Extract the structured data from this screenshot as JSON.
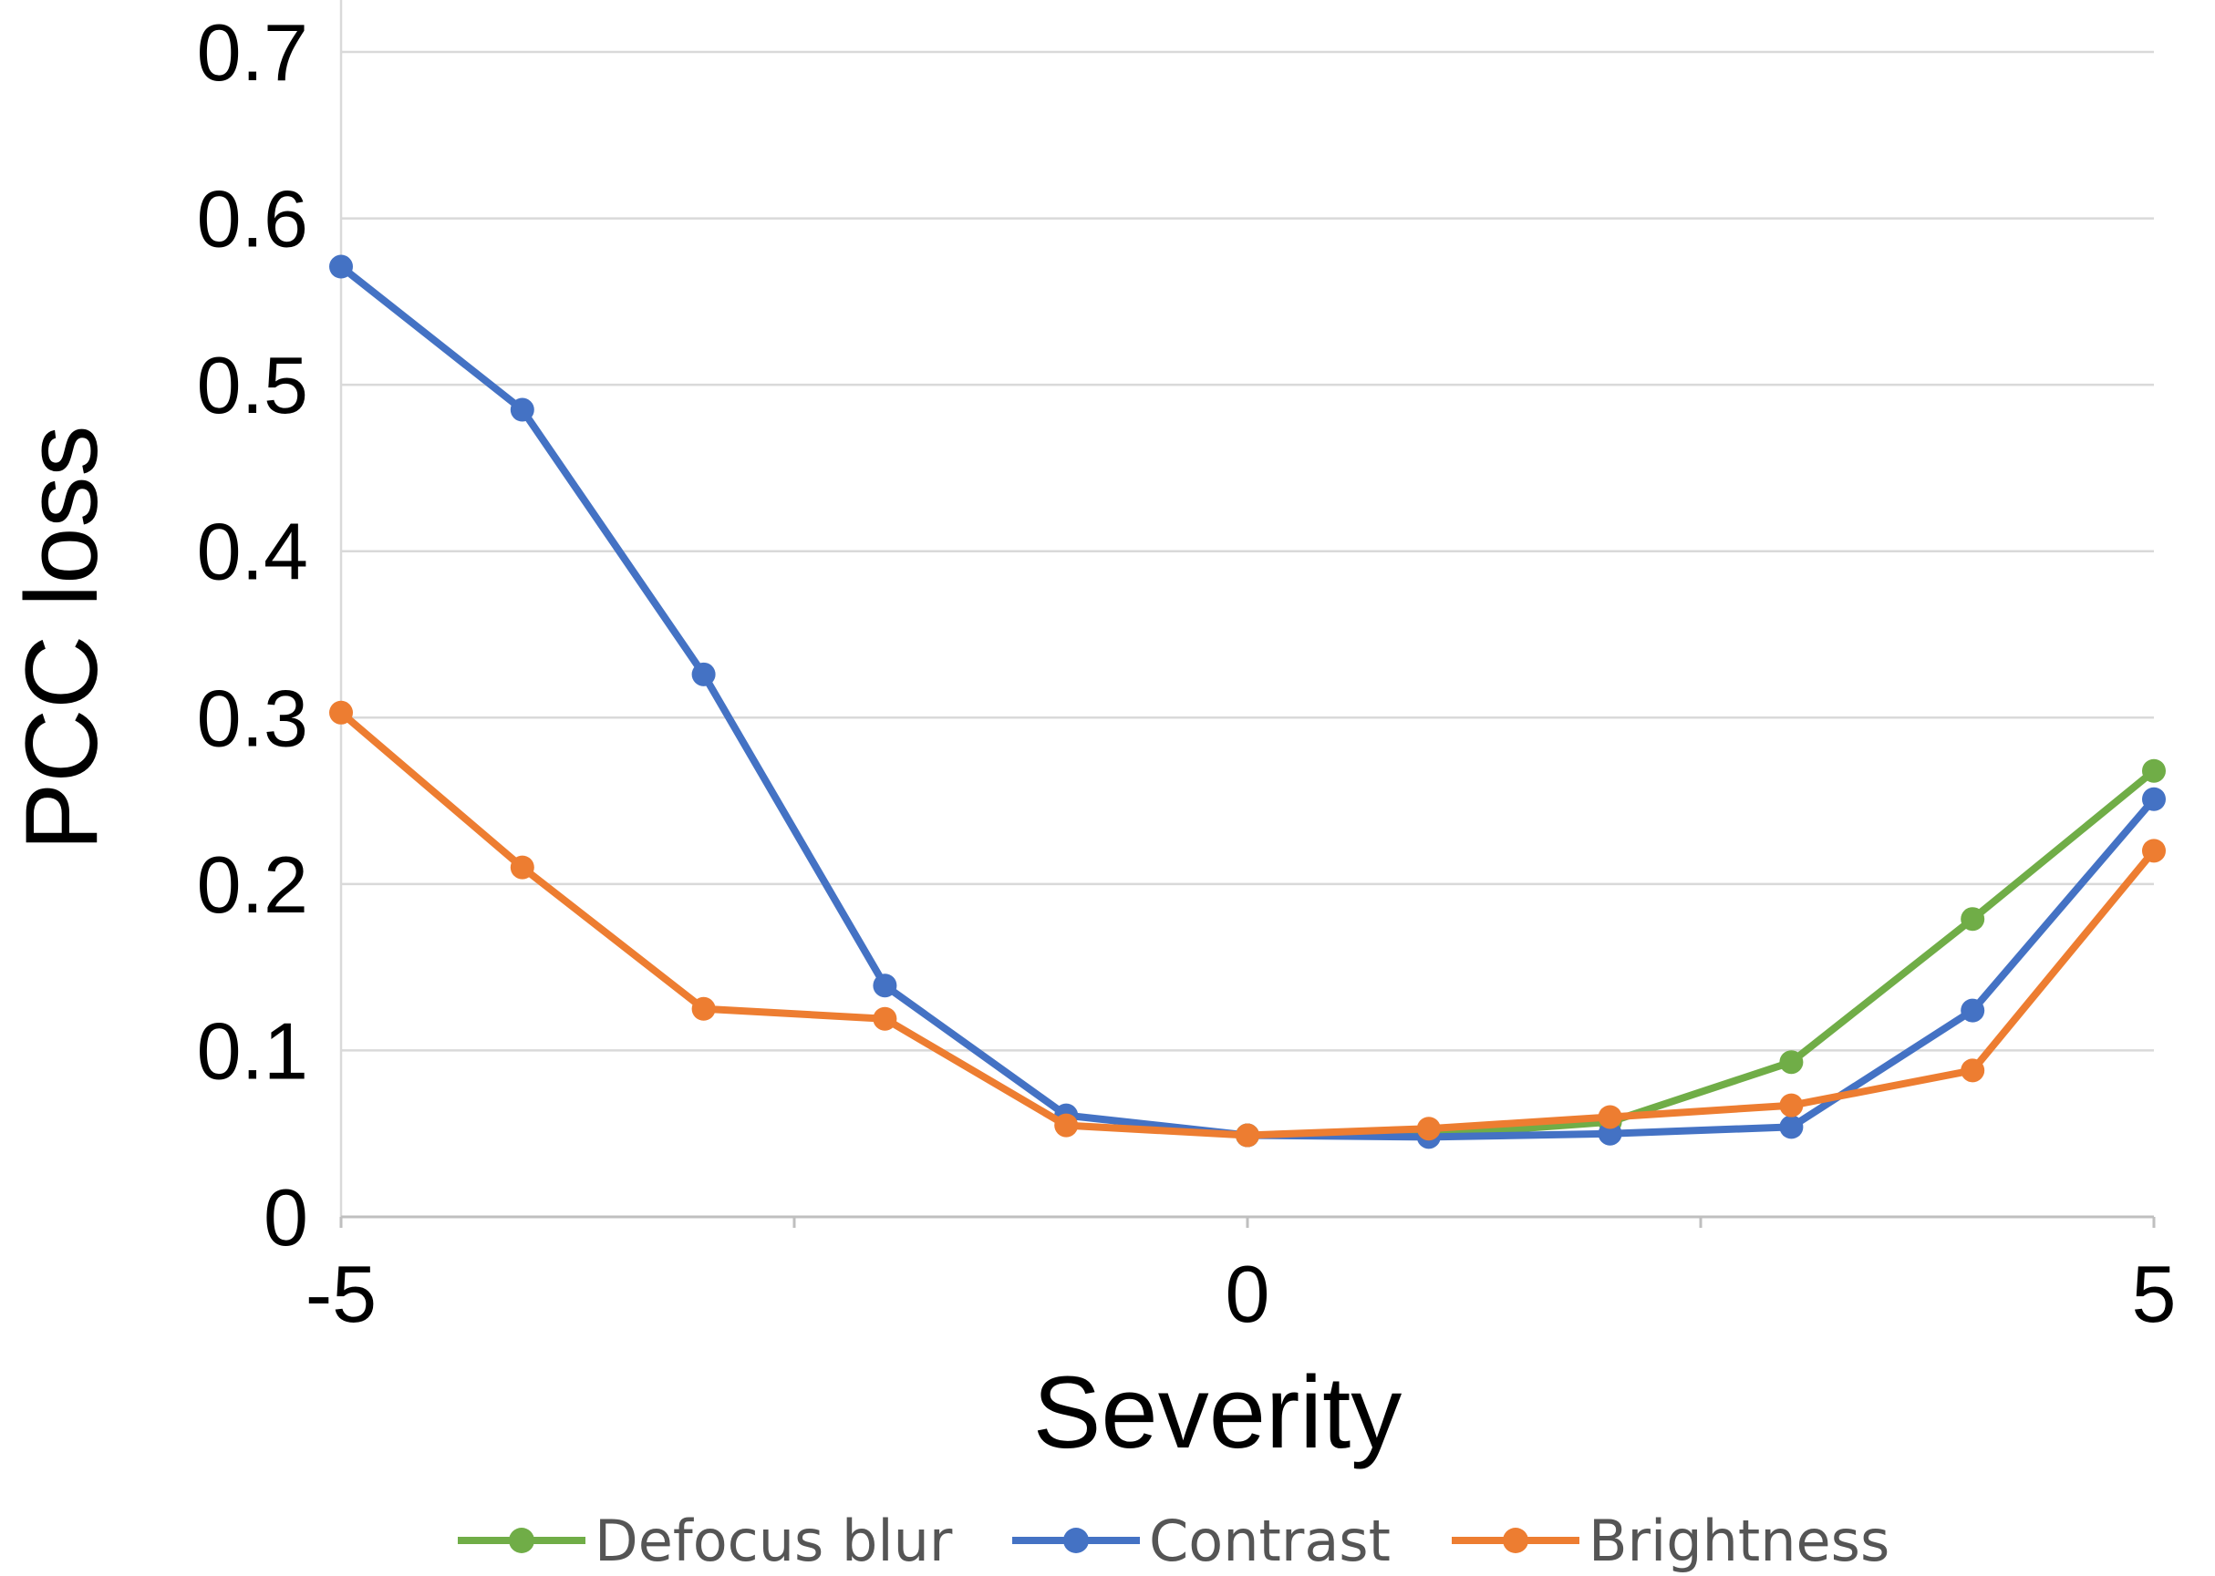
{
  "chart_data": {
    "type": "line",
    "xlabel": "Severity",
    "ylabel": "PCC loss",
    "xlim": [
      -5,
      5
    ],
    "ylim": [
      0,
      0.7
    ],
    "x_ticks": [
      -5,
      0,
      5
    ],
    "x_tick_labels": [
      "-5",
      "0",
      "5"
    ],
    "y_ticks": [
      0,
      0.1,
      0.2,
      0.3,
      0.4,
      0.5,
      0.6,
      0.7
    ],
    "y_tick_labels": [
      "0",
      "0.1",
      "0.2",
      "0.3",
      "0.4",
      "0.5",
      "0.6",
      "0.7"
    ],
    "grid": "horizontal",
    "legend_position": "bottom",
    "series": [
      {
        "name": "Defocus blur",
        "color": "#70ad47",
        "x": [
          0,
          1,
          2,
          3,
          4,
          5
        ],
        "y": [
          0.049,
          0.049,
          0.057,
          0.093,
          0.179,
          0.268
        ]
      },
      {
        "name": "Contrast",
        "color": "#4472c4",
        "x": [
          -5,
          -4,
          -3,
          -2,
          -1,
          0,
          1,
          2,
          3,
          4,
          5
        ],
        "y": [
          0.571,
          0.485,
          0.326,
          0.139,
          0.061,
          0.049,
          0.048,
          0.05,
          0.054,
          0.124,
          0.251
        ]
      },
      {
        "name": "Brightness",
        "color": "#ed7d31",
        "x": [
          -5,
          -4,
          -3,
          -2,
          -1,
          0,
          1,
          2,
          3,
          4,
          5
        ],
        "y": [
          0.303,
          0.21,
          0.125,
          0.119,
          0.055,
          0.049,
          0.053,
          0.06,
          0.067,
          0.088,
          0.22
        ]
      }
    ]
  }
}
